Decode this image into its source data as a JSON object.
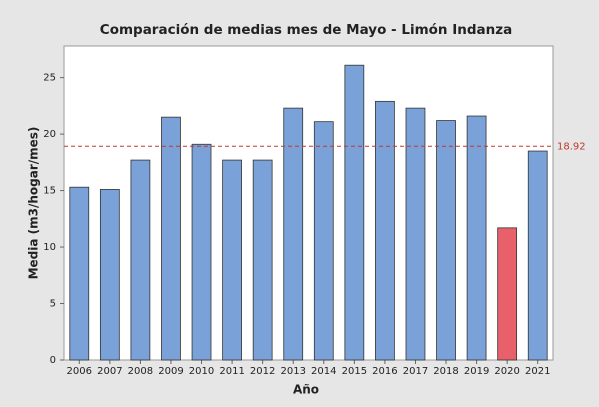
{
  "chart_data": {
    "type": "bar",
    "title": "Comparación de medias mes de Mayo - Limón Indanza",
    "x_label": "Año",
    "y_label": "Media (m3/hogar/mes)",
    "categories": [
      "2006",
      "2007",
      "2008",
      "2009",
      "2010",
      "2011",
      "2012",
      "2013",
      "2014",
      "2015",
      "2016",
      "2017",
      "2018",
      "2019",
      "2020",
      "2021"
    ],
    "values": [
      15.3,
      15.1,
      17.7,
      21.5,
      19.1,
      17.7,
      17.7,
      22.3,
      21.1,
      26.1,
      22.9,
      22.3,
      21.2,
      21.6,
      11.7,
      18.5
    ],
    "colors": [
      "#7ba2d8",
      "#7ba2d8",
      "#7ba2d8",
      "#7ba2d8",
      "#7ba2d8",
      "#7ba2d8",
      "#7ba2d8",
      "#7ba2d8",
      "#7ba2d8",
      "#7ba2d8",
      "#7ba2d8",
      "#7ba2d8",
      "#7ba2d8",
      "#7ba2d8",
      "#e8606a",
      "#7ba2d8"
    ],
    "reference_line": 18.92,
    "reference_color": "#c0392b",
    "ylim": [
      0,
      27.8
    ],
    "yticks": [
      0,
      5,
      10,
      15,
      20,
      25
    ],
    "grid": false
  }
}
